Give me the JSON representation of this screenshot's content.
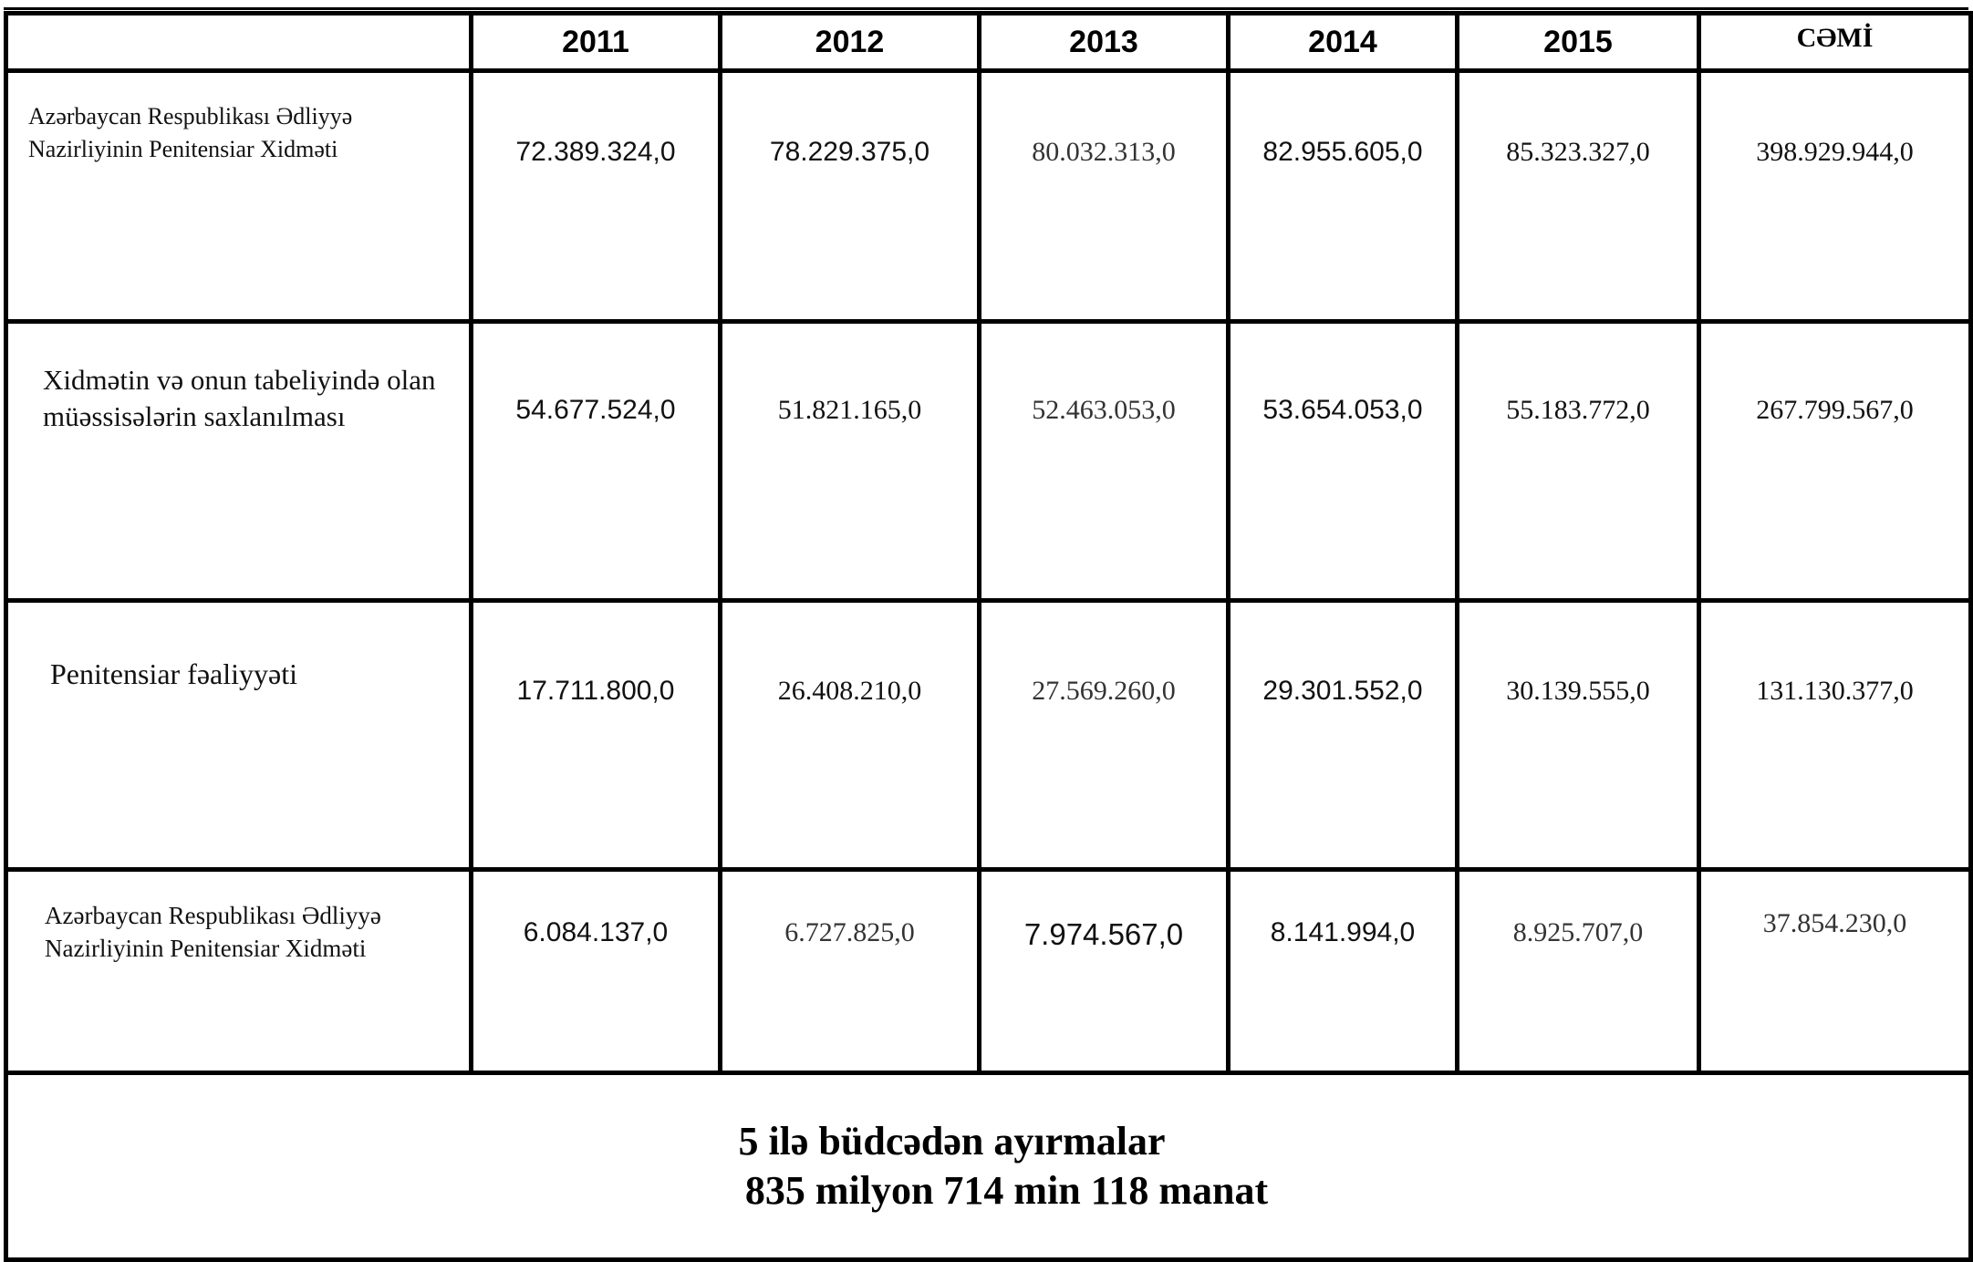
{
  "header": {
    "blank": "",
    "years": [
      "2011",
      "2012",
      "2013",
      "2014",
      "2015"
    ],
    "total_label": "CƏMİ"
  },
  "rows": [
    {
      "label": "Azərbaycan Respublikası Ədliyyə Nazirliyinin Penitensiar Xidməti",
      "values": [
        "72.389.324,0",
        "78.229.375,0",
        "80.032.313,0",
        "82.955.605,0",
        "85.323.327,0"
      ],
      "total": "398.929.944,0"
    },
    {
      "label": "Xidmətin və onun tabeliyində olan müəssisələrin saxlanılması",
      "values": [
        "54.677.524,0",
        "51.821.165,0",
        "52.463.053,0",
        "53.654.053,0",
        "55.183.772,0"
      ],
      "total": "267.799.567,0"
    },
    {
      "label": "Penitensiar fəaliyyəti",
      "values": [
        "17.711.800,0",
        "26.408.210,0",
        "27.569.260,0",
        "29.301.552,0",
        "30.139.555,0"
      ],
      "total": "131.130.377,0"
    },
    {
      "label": "Azərbaycan Respublikası Ədliyyə Nazirliyinin Penitensiar Xidməti",
      "values": [
        "6.084.137,0",
        "6.727.825,0",
        "7.974.567,0",
        "8.141.994,0",
        "8.925.707,0"
      ],
      "total": "37.854.230,0"
    }
  ],
  "summary": {
    "line1": "5 ilə büdcədən ayırmalar",
    "line2": "835 milyon 714 min 118 manat"
  }
}
